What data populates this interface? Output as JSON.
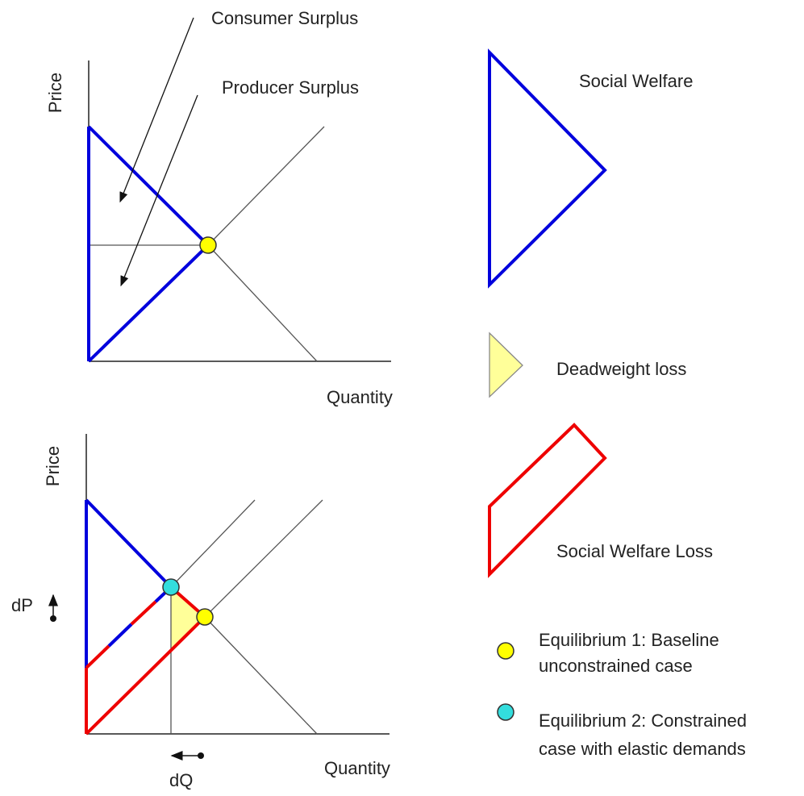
{
  "top_diagram": {
    "y_axis_label": "Price",
    "x_axis_label": "Quantity",
    "annotations": [
      "Consumer Surplus",
      "Producer Surplus"
    ]
  },
  "bottom_diagram": {
    "y_axis_label": "Price",
    "x_axis_label": "Quantity",
    "price_change_label": "dP",
    "quantity_change_label": "dQ"
  },
  "legend": {
    "items": [
      {
        "lines": [
          "Social Welfare"
        ]
      },
      {
        "lines": [
          "Deadweight loss"
        ]
      },
      {
        "lines": [
          "Social Welfare Loss"
        ]
      },
      {
        "lines": [
          "Equilibrium 1: Baseline",
          "unconstrained case"
        ]
      },
      {
        "lines": [
          "Equilibrium 2: Constrained",
          "case with elastic demands"
        ]
      }
    ]
  }
}
